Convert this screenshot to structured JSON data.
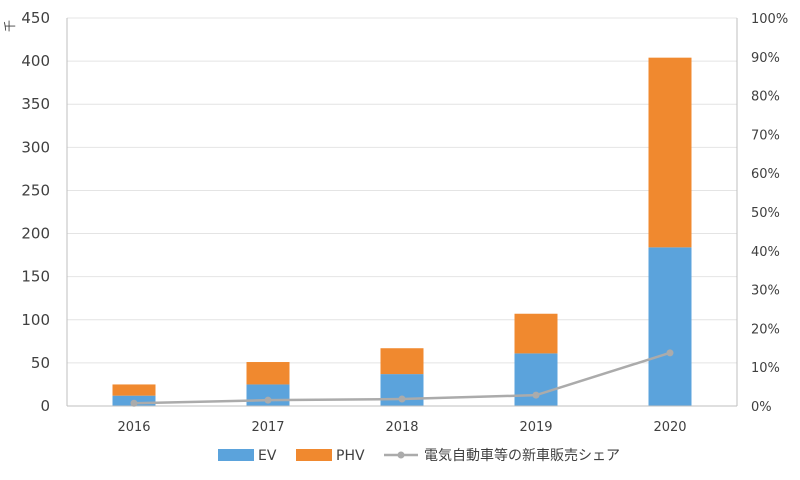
{
  "chart_data": {
    "type": "bar",
    "stacked": true,
    "categories": [
      "2016",
      "2017",
      "2018",
      "2019",
      "2020"
    ],
    "series": [
      {
        "name": "EV",
        "kind": "bar",
        "axis": "left",
        "color": "#5BA3DC",
        "values": [
          12,
          25,
          37,
          61,
          184
        ]
      },
      {
        "name": "PHV",
        "kind": "bar",
        "axis": "left",
        "color": "#F0892F",
        "values": [
          13,
          26,
          30,
          46,
          220
        ]
      },
      {
        "name": "電気自動車等の新車販売シェア",
        "kind": "line",
        "axis": "right",
        "color": "#ABABAB",
        "values": [
          0.007,
          0.015,
          0.018,
          0.028,
          0.137
        ]
      }
    ],
    "y_left": {
      "ylim": [
        0,
        450
      ],
      "ticks": [
        "0",
        "50",
        "100",
        "150",
        "200",
        "250",
        "300",
        "350",
        "400",
        "450"
      ],
      "unit": "千"
    },
    "y_right": {
      "ylim": [
        0,
        1
      ],
      "ticks": [
        "0%",
        "10%",
        "20%",
        "30%",
        "40%",
        "50%",
        "60%",
        "70%",
        "80%",
        "90%",
        "100%"
      ]
    },
    "grid": true,
    "legend_position": "bottom-center"
  }
}
